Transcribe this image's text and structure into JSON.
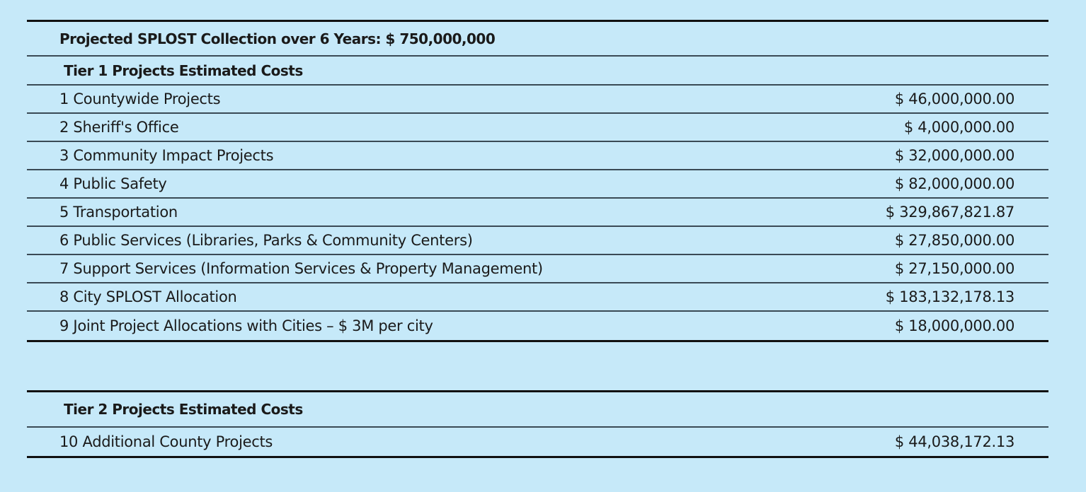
{
  "summary": {
    "title": "Projected SPLOST Collection over 6 Years: $ 750,000,000"
  },
  "tier1": {
    "heading": "Tier 1 Projects Estimated Costs",
    "items": [
      {
        "label": "1 Countywide Projects",
        "amount": "$ 46,000,000.00"
      },
      {
        "label": "2 Sheriff's Office",
        "amount": "$ 4,000,000.00"
      },
      {
        "label": "3 Community Impact Projects",
        "amount": "$ 32,000,000.00"
      },
      {
        "label": "4 Public Safety",
        "amount": "$ 82,000,000.00"
      },
      {
        "label": "5 Transportation",
        "amount": "$ 329,867,821.87"
      },
      {
        "label": "6 Public Services (Libraries, Parks & Community Centers)",
        "amount": "$ 27,850,000.00"
      },
      {
        "label": "7 Support Services (Information Services & Property Management)",
        "amount": "$ 27,150,000.00"
      },
      {
        "label": "8 City SPLOST Allocation",
        "amount": "$ 183,132,178.13"
      },
      {
        "label": "9 Joint Project Allocations with Cities – $ 3M per city",
        "amount": "$ 18,000,000.00"
      }
    ]
  },
  "tier2": {
    "heading": "Tier 2 Projects Estimated Costs",
    "items": [
      {
        "label": "10 Additional County Projects",
        "amount": "$ 44,038,172.13"
      }
    ]
  },
  "colors": {
    "background": "#c6e9f9",
    "rule": "#3a4a55",
    "thick_rule": "#111111"
  }
}
